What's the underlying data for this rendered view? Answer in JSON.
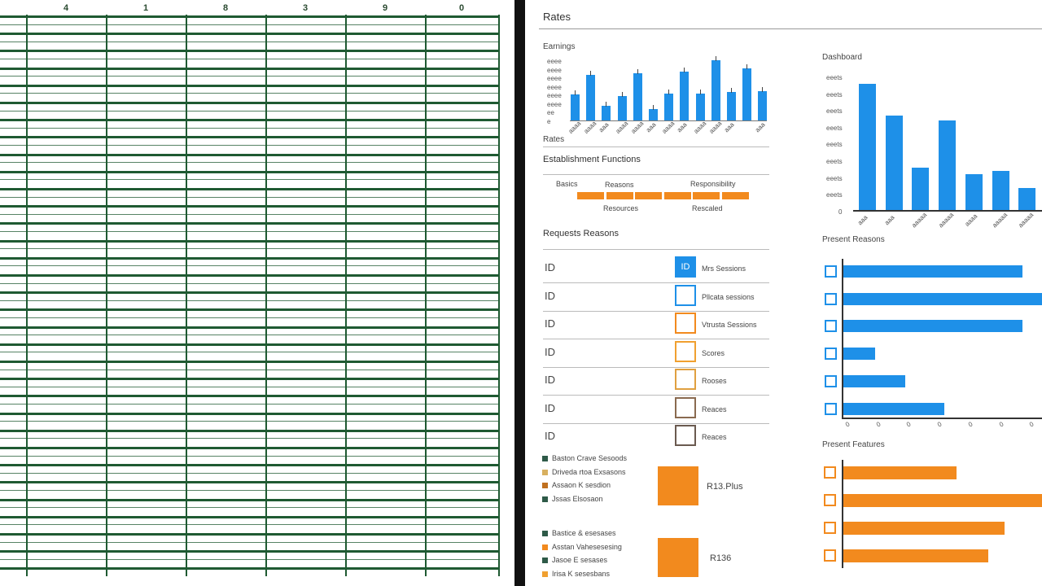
{
  "spreadsheet": {
    "column_headers": [
      "4",
      "1",
      "8",
      "3",
      "9",
      "0"
    ],
    "grid_color": "#1f5a32"
  },
  "panel": {
    "title": "Rates",
    "earnings": {
      "label": "Earnings",
      "y_ticks": [
        "eeee",
        "eeee",
        "eeee",
        "eeee",
        "eeee",
        "eeee",
        "ee",
        "e"
      ],
      "x_labels": [
        "aaaa",
        "aaaa",
        "aaa",
        "aaaa",
        "aaaa",
        "aaa",
        "aaaa",
        "aaa",
        "aaaa",
        "aaaa",
        "aaa",
        "",
        "aaa"
      ],
      "values": [
        2.9,
        5.1,
        1.6,
        2.7,
        5.3,
        1.3,
        3.0,
        5.5,
        3.0,
        6.7,
        3.2,
        5.8,
        3.3
      ],
      "footer": "Rates",
      "color": "#1e90e8"
    },
    "establishment": {
      "title": "Establishment Functions",
      "top_labels": [
        "Basics",
        "Reasons",
        "Responsibility"
      ],
      "bottom_labels": [
        "Resources",
        "Rescaled"
      ],
      "segments": 6,
      "color": "#f28a1e"
    },
    "requests": {
      "title": "Requests Reasons",
      "rows": [
        {
          "id": "ID",
          "box_text": "ID",
          "label": "Mrs Sessions",
          "color": "#1e90e8",
          "filled": true
        },
        {
          "id": "ID",
          "box_text": "",
          "label": "Pllcata sessions",
          "color": "#1e90e8",
          "filled": false
        },
        {
          "id": "ID",
          "box_text": "",
          "label": "Vtrusta Sessions",
          "color": "#f28a1e",
          "filled": false
        },
        {
          "id": "ID",
          "box_text": "",
          "label": "Scores",
          "color": "#f0a030",
          "filled": false
        },
        {
          "id": "ID",
          "box_text": "",
          "label": "Rooses",
          "color": "#e0a040",
          "filled": false
        },
        {
          "id": "ID",
          "box_text": "",
          "label": "Reaces",
          "color": "#8a6a50",
          "filled": false
        },
        {
          "id": "ID",
          "box_text": "",
          "label": "Reaces",
          "color": "#6a5a50",
          "filled": false
        }
      ]
    },
    "legend_groups": [
      {
        "items": [
          {
            "label": "Baston  Crave Sesoods",
            "color": "#2e5a48"
          },
          {
            "label": "Driveda rtoa  Exsasons",
            "color": "#d8b060"
          },
          {
            "label": "Assaon  K sesdion",
            "color": "#c07020"
          },
          {
            "label": "Jssas  Elsosaon",
            "color": "#2e5a48"
          }
        ],
        "value": "R13.Plus",
        "color": "#f28a1e"
      },
      {
        "items": [
          {
            "label": "Bastice  & esesases",
            "color": "#2e5a48"
          },
          {
            "label": "Asstan  Vahesesesing",
            "color": "#f28a1e"
          },
          {
            "label": "Jasoe  E sesases",
            "color": "#2e5a48"
          },
          {
            "label": "Irisa  K sesesbans",
            "color": "#f0a030"
          }
        ],
        "value": "R136",
        "color": "#f28a1e"
      }
    ],
    "dashboard": {
      "label": "Dashboard",
      "y_ticks": [
        "eeets",
        "eeets",
        "eeets",
        "eeets",
        "eeets",
        "eeets",
        "eeets",
        "eeets",
        "0"
      ],
      "x_labels": [
        "aaa",
        "aaa",
        "aaaaa",
        "aaaaa",
        "aaaa",
        "aaaaa",
        "aaaaa"
      ],
      "values": [
        7.75,
        5.8,
        2.6,
        5.5,
        2.2,
        2.4,
        1.35
      ],
      "ylim": [
        0,
        8
      ],
      "color": "#1e90e8"
    },
    "present_reasons": {
      "title": "Present Reasons",
      "values": [
        90,
        100,
        90,
        16,
        31,
        51
      ],
      "x_ticks": [
        "0",
        "0",
        "0",
        "0",
        "0",
        "0",
        "0"
      ],
      "color": "#1e90e8"
    },
    "present_features": {
      "title": "Present Features",
      "values": [
        57,
        100,
        81,
        73
      ],
      "color": "#f28a1e"
    }
  }
}
